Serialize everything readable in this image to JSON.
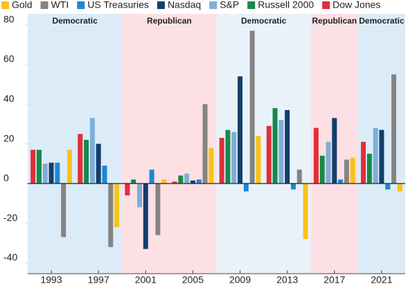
{
  "chart_data": {
    "type": "bar",
    "categories": [
      "1993",
      "1997",
      "2001",
      "2005",
      "2009",
      "2013",
      "2017",
      "2021"
    ],
    "regions": [
      {
        "label": "Democratic",
        "start": 0,
        "end": 1,
        "color": "#dcebf8"
      },
      {
        "label": "Republican",
        "start": 2,
        "end": 3,
        "color": "#fde0e3"
      },
      {
        "label": "Democratic",
        "start": 4,
        "end": 5,
        "color": "#e9f2fb"
      },
      {
        "label": "Republican",
        "start": 6,
        "end": 6,
        "color": "#fde0e3"
      },
      {
        "label": "Democratic",
        "start": 7,
        "end": 7,
        "color": "#dcebf8"
      }
    ],
    "series": [
      {
        "name": "Gold",
        "color": "#f7c21b",
        "values": [
          17,
          -22,
          2,
          18,
          24,
          -28,
          13,
          -4
        ]
      },
      {
        "name": "WTI",
        "color": "#848484",
        "values": [
          -27,
          -32,
          -26,
          40,
          77,
          7,
          12,
          55
        ]
      },
      {
        "name": "US Treasuries",
        "color": "#1d86d4",
        "values": [
          10.5,
          9,
          7,
          2,
          -4,
          -3,
          2,
          -3
        ]
      },
      {
        "name": "Nasdaq",
        "color": "#123f6c",
        "values": [
          10.5,
          20,
          -33,
          1.5,
          54,
          37,
          33,
          27
        ]
      },
      {
        "name": "S&P",
        "color": "#7eaed6",
        "values": [
          10,
          33,
          -12,
          5,
          26,
          32,
          21,
          28
        ]
      },
      {
        "name": "Russell 2000",
        "color": "#17894a",
        "values": [
          17,
          22,
          2,
          4,
          27,
          38,
          14,
          15
        ]
      },
      {
        "name": "Dow Jones",
        "color": "#df2f3a",
        "values": [
          17,
          25,
          -6,
          1,
          23,
          29,
          28,
          21
        ]
      }
    ],
    "ylim": [
      -43,
      82
    ],
    "yticks": [
      -40,
      -20,
      0,
      20,
      40,
      60,
      80
    ]
  }
}
